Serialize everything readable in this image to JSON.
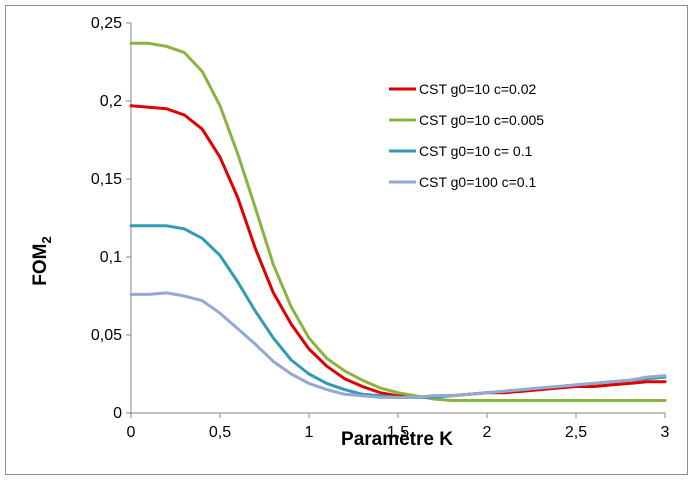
{
  "chart_data": {
    "type": "line",
    "title": "",
    "xlabel": "Paramètre K",
    "ylabel_main": "FOM",
    "ylabel_sub": "2",
    "xlim": [
      0,
      3
    ],
    "ylim": [
      0,
      0.25
    ],
    "x_ticks": [
      "0",
      "0,5",
      "1",
      "1,5",
      "2",
      "2,5",
      "3"
    ],
    "y_ticks": [
      "0",
      "0,05",
      "0,1",
      "0,15",
      "0,2",
      "0,25"
    ],
    "grid": false,
    "legend_position": "upper-right",
    "x": [
      0,
      0.1,
      0.2,
      0.3,
      0.4,
      0.5,
      0.6,
      0.7,
      0.8,
      0.9,
      1.0,
      1.1,
      1.2,
      1.3,
      1.4,
      1.5,
      1.6,
      1.7,
      1.8,
      1.9,
      2.0,
      2.1,
      2.2,
      2.3,
      2.4,
      2.5,
      2.6,
      2.7,
      2.8,
      2.9,
      3.0
    ],
    "series": [
      {
        "name": "CST  g0=10 c=0.02",
        "color": "#e00000",
        "values": [
          0.197,
          0.196,
          0.195,
          0.191,
          0.182,
          0.164,
          0.138,
          0.105,
          0.077,
          0.057,
          0.041,
          0.03,
          0.022,
          0.017,
          0.013,
          0.011,
          0.01,
          0.011,
          0.011,
          0.012,
          0.013,
          0.013,
          0.014,
          0.015,
          0.016,
          0.017,
          0.017,
          0.018,
          0.019,
          0.02,
          0.02
        ]
      },
      {
        "name": "CST g0=10 c=0.005",
        "color": "#8db33f",
        "values": [
          0.237,
          0.237,
          0.235,
          0.231,
          0.219,
          0.197,
          0.166,
          0.131,
          0.095,
          0.068,
          0.048,
          0.035,
          0.027,
          0.021,
          0.016,
          0.013,
          0.011,
          0.009,
          0.008,
          0.008,
          0.008,
          0.008,
          0.008,
          0.008,
          0.008,
          0.008,
          0.008,
          0.008,
          0.008,
          0.008,
          0.008
        ]
      },
      {
        "name": "CST g0=10 c= 0.1",
        "color": "#2f9bb4",
        "values": [
          0.12,
          0.12,
          0.12,
          0.118,
          0.112,
          0.101,
          0.084,
          0.065,
          0.048,
          0.034,
          0.025,
          0.019,
          0.015,
          0.012,
          0.011,
          0.01,
          0.01,
          0.01,
          0.011,
          0.012,
          0.013,
          0.014,
          0.015,
          0.016,
          0.017,
          0.018,
          0.019,
          0.02,
          0.021,
          0.022,
          0.023
        ]
      },
      {
        "name": "CST g0=100 c=0.1",
        "color": "#93a9d2",
        "values": [
          0.076,
          0.076,
          0.077,
          0.075,
          0.072,
          0.064,
          0.054,
          0.044,
          0.033,
          0.025,
          0.019,
          0.015,
          0.012,
          0.011,
          0.01,
          0.01,
          0.01,
          0.011,
          0.011,
          0.012,
          0.013,
          0.014,
          0.015,
          0.016,
          0.017,
          0.018,
          0.019,
          0.02,
          0.021,
          0.023,
          0.024
        ]
      }
    ]
  }
}
